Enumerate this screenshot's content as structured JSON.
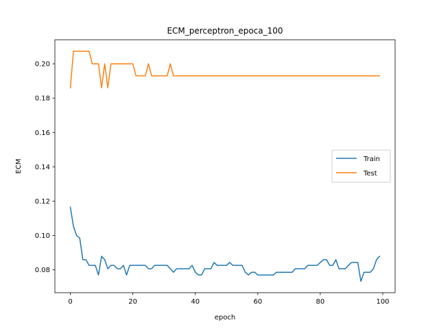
{
  "chart_data": {
    "type": "line",
    "title": "ECM_perceptron_epoca_100",
    "xlabel": "epoch",
    "ylabel": "ECM",
    "xlim": [
      -4.95,
      103.95
    ],
    "ylim": [
      0.0667,
      0.214
    ],
    "xticks": [
      0,
      20,
      40,
      60,
      80,
      100
    ],
    "xtick_labels": [
      "0",
      "20",
      "40",
      "60",
      "80",
      "100"
    ],
    "yticks": [
      0.08,
      0.1,
      0.12,
      0.14,
      0.16,
      0.18,
      0.2
    ],
    "ytick_labels": [
      "0.08",
      "0.10",
      "0.12",
      "0.14",
      "0.16",
      "0.18",
      "0.20"
    ],
    "grid": false,
    "legend_position": "center-right",
    "series": [
      {
        "name": "Train",
        "color": "#1f77b4",
        "values": [
          0.1165,
          0.1053,
          0.1,
          0.0986,
          0.0859,
          0.0859,
          0.0826,
          0.0826,
          0.0826,
          0.077,
          0.0879,
          0.0859,
          0.0806,
          0.0826,
          0.0826,
          0.0806,
          0.0806,
          0.0826,
          0.077,
          0.0826,
          0.0826,
          0.0826,
          0.0826,
          0.0826,
          0.0826,
          0.0806,
          0.0806,
          0.0826,
          0.0826,
          0.0826,
          0.0826,
          0.0826,
          0.0806,
          0.0786,
          0.0806,
          0.0806,
          0.0806,
          0.0806,
          0.0806,
          0.0826,
          0.0786,
          0.077,
          0.077,
          0.0806,
          0.0806,
          0.0806,
          0.0843,
          0.0826,
          0.0826,
          0.0826,
          0.0826,
          0.0843,
          0.0826,
          0.0826,
          0.0826,
          0.0826,
          0.0786,
          0.077,
          0.0786,
          0.0786,
          0.077,
          0.077,
          0.077,
          0.077,
          0.077,
          0.077,
          0.0786,
          0.0786,
          0.0786,
          0.0786,
          0.0786,
          0.0786,
          0.0806,
          0.0806,
          0.0806,
          0.0806,
          0.0826,
          0.0826,
          0.0826,
          0.0826,
          0.0843,
          0.0859,
          0.0859,
          0.0826,
          0.0826,
          0.0859,
          0.0806,
          0.0806,
          0.0806,
          0.0826,
          0.0843,
          0.0843,
          0.0843,
          0.0733,
          0.0786,
          0.0786,
          0.0786,
          0.0806,
          0.0859,
          0.0879
        ]
      },
      {
        "name": "Test",
        "color": "#ff7f0e",
        "values": [
          0.186,
          0.2073,
          0.2073,
          0.2073,
          0.2073,
          0.2073,
          0.2073,
          0.2,
          0.2,
          0.2,
          0.186,
          0.2,
          0.186,
          0.2,
          0.2,
          0.2,
          0.2,
          0.2,
          0.2,
          0.2,
          0.2,
          0.193,
          0.193,
          0.193,
          0.193,
          0.2,
          0.193,
          0.193,
          0.193,
          0.193,
          0.193,
          0.193,
          0.2,
          0.193,
          0.193,
          0.193,
          0.193,
          0.193,
          0.193,
          0.193,
          0.193,
          0.193,
          0.193,
          0.193,
          0.193,
          0.193,
          0.193,
          0.193,
          0.193,
          0.193,
          0.193,
          0.193,
          0.193,
          0.193,
          0.193,
          0.193,
          0.193,
          0.193,
          0.193,
          0.193,
          0.193,
          0.193,
          0.193,
          0.193,
          0.193,
          0.193,
          0.193,
          0.193,
          0.193,
          0.193,
          0.193,
          0.193,
          0.193,
          0.193,
          0.193,
          0.193,
          0.193,
          0.193,
          0.193,
          0.193,
          0.193,
          0.193,
          0.193,
          0.193,
          0.193,
          0.193,
          0.193,
          0.193,
          0.193,
          0.193,
          0.193,
          0.193,
          0.193,
          0.193,
          0.193,
          0.193,
          0.193,
          0.193,
          0.193,
          0.193
        ]
      }
    ]
  }
}
